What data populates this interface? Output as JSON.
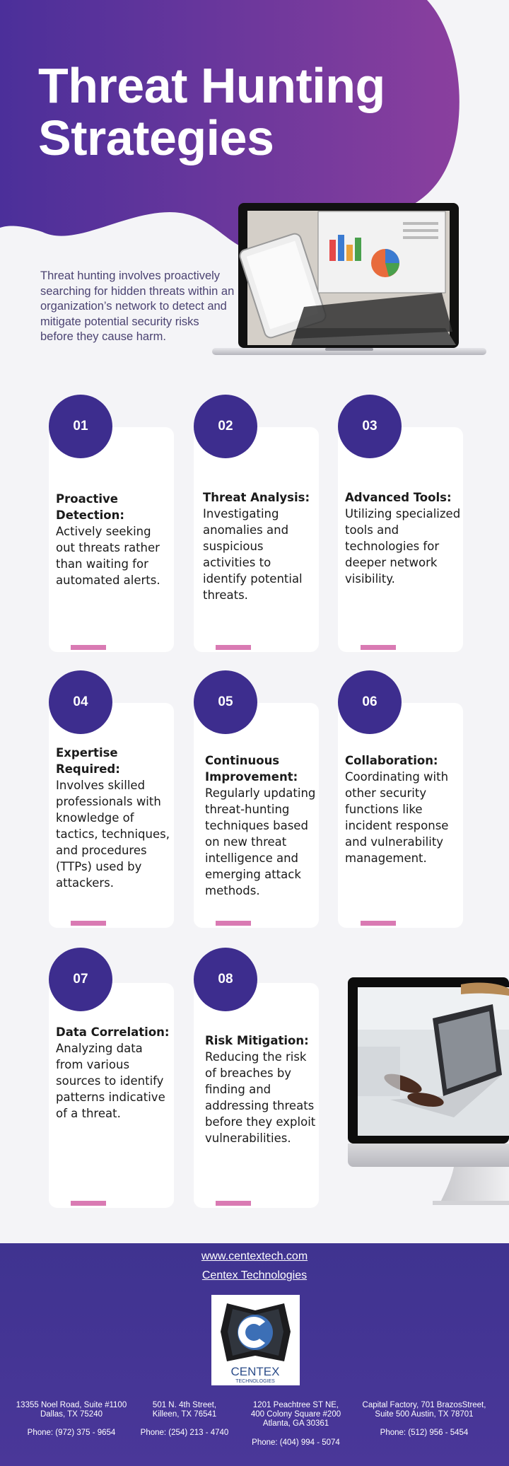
{
  "header": {
    "title_line1": "Threat Hunting",
    "title_line2": "Strategies"
  },
  "intro": "Threat hunting involves proactively searching for hidden threats within an organization’s network to detect and mitigate potential security risks before they cause harm.",
  "colors": {
    "hero_gradient_start": "#4b2f9a",
    "hero_gradient_end": "#8a3f9e",
    "badge": "#3d2d8e",
    "accent_bar": "#d97ab3",
    "footer": "#44368f",
    "intro_text": "#4b4372"
  },
  "cards": [
    {
      "number": "01",
      "title": "Proactive Detection:",
      "body": "Actively seeking out threats rather than waiting for automated alerts."
    },
    {
      "number": "02",
      "title": "Threat Analysis:",
      "body": "Investigating anomalies and suspicious activities to identify potential threats."
    },
    {
      "number": "03",
      "title": "Advanced Tools:",
      "body": "Utilizing specialized tools and technologies for deeper network visibility."
    },
    {
      "number": "04",
      "title": "Expertise Required:",
      "body": "Involves skilled professionals with knowledge of tactics, techniques, and procedures (TTPs) used by attackers."
    },
    {
      "number": "05",
      "title": "Continuous Improvement:",
      "body": "Regularly updating threat-hunting techniques based on new threat intelligence and emerging attack methods."
    },
    {
      "number": "06",
      "title": "Collaboration:",
      "body": "Coordinating with other security functions like incident response and vulnerability management."
    },
    {
      "number": "07",
      "title": "Data Correlation:",
      "body": "Analyzing data from various sources to identify patterns indicative of a threat."
    },
    {
      "number": "08",
      "title": "Risk Mitigation:",
      "body": "Reducing the risk of breaches by finding and addressing threats before they exploit vulnerabilities."
    }
  ],
  "footer": {
    "website": "www.centextech.com",
    "company": "Centex Technologies",
    "logo_name": "CENTEX",
    "logo_sub": "TECHNOLOGIES",
    "offices": [
      {
        "line1": "13355 Noel Road, Suite #1100",
        "line2": "Dallas, TX 75240",
        "line3": "",
        "phone": "Phone: (972) 375 - 9654"
      },
      {
        "line1": "501 N. 4th Street,",
        "line2": "Killeen, TX 76541",
        "line3": "",
        "phone": "Phone: (254) 213 - 4740"
      },
      {
        "line1": "1201 Peachtree ST NE,",
        "line2": "400 Colony Square #200",
        "line3": "Atlanta, GA 30361",
        "phone": "Phone: (404) 994 - 5074"
      },
      {
        "line1": "Capital Factory, 701 BrazosStreet,",
        "line2": "Suite 500 Austin, TX 78701",
        "line3": "",
        "phone": "Phone: (512) 956 - 5454"
      }
    ]
  }
}
